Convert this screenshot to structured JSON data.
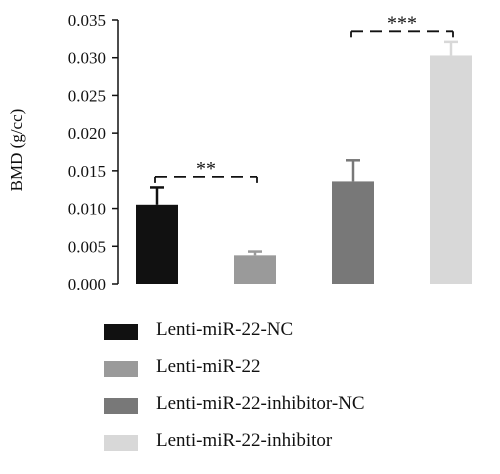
{
  "chart_data": {
    "type": "bar",
    "ylabel": "BMD (g/cc)",
    "ylim": [
      0,
      0.035
    ],
    "yticks": [
      "0.000",
      "0.005",
      "0.010",
      "0.015",
      "0.020",
      "0.025",
      "0.030",
      "0.035"
    ],
    "series": [
      {
        "name": "Lenti-miR-22-NC",
        "value": 0.0105,
        "error": 0.0023,
        "color": "#111111"
      },
      {
        "name": "Lenti-miR-22",
        "value": 0.0038,
        "error": 0.0005,
        "color": "#9a9a9a"
      },
      {
        "name": "Lenti-miR-22-inhibitor-NC",
        "value": 0.0136,
        "error": 0.0028,
        "color": "#787878"
      },
      {
        "name": "Lenti-miR-22-inhibitor",
        "value": 0.0303,
        "error": 0.0018,
        "color": "#d8d8d8"
      }
    ],
    "annotations": [
      {
        "from": 0,
        "to": 1,
        "label": "**",
        "y": 0.0142
      },
      {
        "from": 2,
        "to": 3,
        "label": "***",
        "y": 0.0335
      }
    ],
    "grid": false,
    "legend_position": "bottom"
  }
}
